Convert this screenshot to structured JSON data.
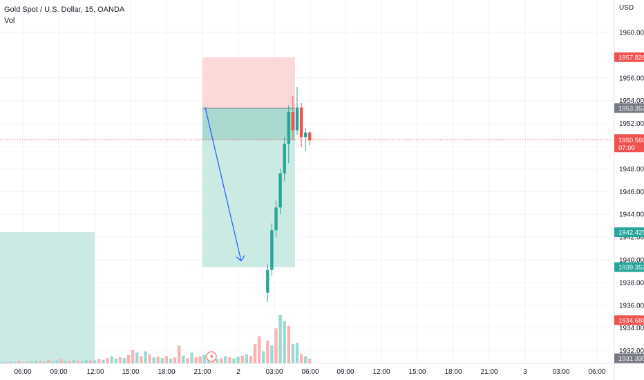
{
  "header": {
    "symbol_line": "Gold Spot / U.S. Dollar, 15, OANDA",
    "indicator": "Vol"
  },
  "colors": {
    "bull": "#26a69a",
    "bear": "#ef5350",
    "vol_bull": "#9fd8d3",
    "vol_bear": "#f8b4b2",
    "target_zone": "#cbeae4",
    "stop_zone": "#fbd9d9",
    "arrow": "#2962ff",
    "current_line": "#ef5350",
    "grid": "#f0f3fa"
  },
  "chart_data": {
    "type": "candlestick",
    "currency": "USD",
    "x_tick_labels": [
      "06:00",
      "09:00",
      "12:00",
      "15:00",
      "18:00",
      "21:00",
      "2",
      "03:00",
      "06:00",
      "09:00",
      "12:00",
      "15:00",
      "18:00",
      "21:00",
      "3",
      "03:00",
      "06:00"
    ],
    "y_tick_labels": [
      "1932.000",
      "1934.000",
      "1936.000",
      "1938.000",
      "1940.000",
      "1942.000",
      "1944.000",
      "1946.000",
      "1948.000",
      "1950.000",
      "1952.000",
      "1954.000",
      "1956.000",
      "1960.000"
    ],
    "ylim": [
      1931.0,
      1962.5
    ],
    "candles": [
      {
        "t": "20:45",
        "o": 1937.1,
        "h": 1939.6,
        "l": 1936.3,
        "c": 1939.1
      },
      {
        "t": "21:00",
        "o": 1939.1,
        "h": 1943.2,
        "l": 1938.6,
        "c": 1942.6
      },
      {
        "t": "21:15",
        "o": 1942.6,
        "h": 1945.2,
        "l": 1942.0,
        "c": 1944.6
      },
      {
        "t": "21:30",
        "o": 1944.6,
        "h": 1948.0,
        "l": 1944.0,
        "c": 1947.6
      },
      {
        "t": "21:45",
        "o": 1947.6,
        "h": 1950.8,
        "l": 1946.9,
        "c": 1950.2
      },
      {
        "t": "22:00",
        "o": 1950.2,
        "h": 1953.6,
        "l": 1948.5,
        "c": 1953.0
      },
      {
        "t": "22:15",
        "o": 1953.0,
        "h": 1954.4,
        "l": 1950.5,
        "c": 1951.4
      },
      {
        "t": "22:30",
        "o": 1951.4,
        "h": 1955.2,
        "l": 1951.0,
        "c": 1953.4
      },
      {
        "t": "22:45",
        "o": 1953.4,
        "h": 1953.8,
        "l": 1949.9,
        "c": 1950.8
      },
      {
        "t": "23:00",
        "o": 1950.8,
        "h": 1951.6,
        "l": 1949.6,
        "c": 1951.2
      },
      {
        "t": "23:15",
        "o": 1951.2,
        "h": 1951.3,
        "l": 1950.1,
        "c": 1950.5
      }
    ],
    "volume": [
      3,
      2,
      3,
      3,
      4,
      2,
      3,
      4,
      5,
      4,
      3,
      6,
      4,
      5,
      7,
      5,
      4,
      6,
      5,
      4,
      6,
      5,
      5,
      7,
      6,
      9,
      12,
      8,
      10,
      9,
      14,
      22,
      18,
      12,
      20,
      15,
      10,
      11,
      9,
      12,
      8,
      10,
      30,
      13,
      9,
      18,
      10,
      12,
      14,
      10,
      11,
      8,
      9,
      12,
      10,
      8,
      11,
      13,
      15,
      12,
      32,
      45,
      20,
      38,
      30,
      58,
      80,
      70,
      62,
      32,
      34,
      15,
      12,
      8
    ],
    "volume_up": [
      1,
      0,
      1,
      1,
      0,
      1,
      0,
      1,
      1,
      0,
      1,
      0,
      1,
      1,
      0,
      1,
      0,
      1,
      0,
      1,
      1,
      0,
      1,
      0,
      1,
      0,
      1,
      1,
      0,
      1,
      0,
      0,
      1,
      0,
      1,
      0,
      1,
      0,
      1,
      0,
      1,
      0,
      0,
      1,
      0,
      1,
      0,
      0,
      1,
      1,
      0,
      1,
      0,
      1,
      0,
      1,
      1,
      0,
      1,
      0,
      0,
      0,
      1,
      0,
      1,
      0,
      1,
      1,
      0,
      1,
      1,
      0,
      1,
      0
    ],
    "short_position": {
      "stop": "1957.825",
      "entry": "1953.352",
      "target": "1939.352"
    },
    "previous_zone_top": "1942.425",
    "current_price": "1950.560",
    "countdown": "07:00",
    "other_label": "1934.688",
    "last_axis_label": "1931.339",
    "projection": {
      "from_price": 1953.4,
      "to_price": 1939.9
    }
  }
}
